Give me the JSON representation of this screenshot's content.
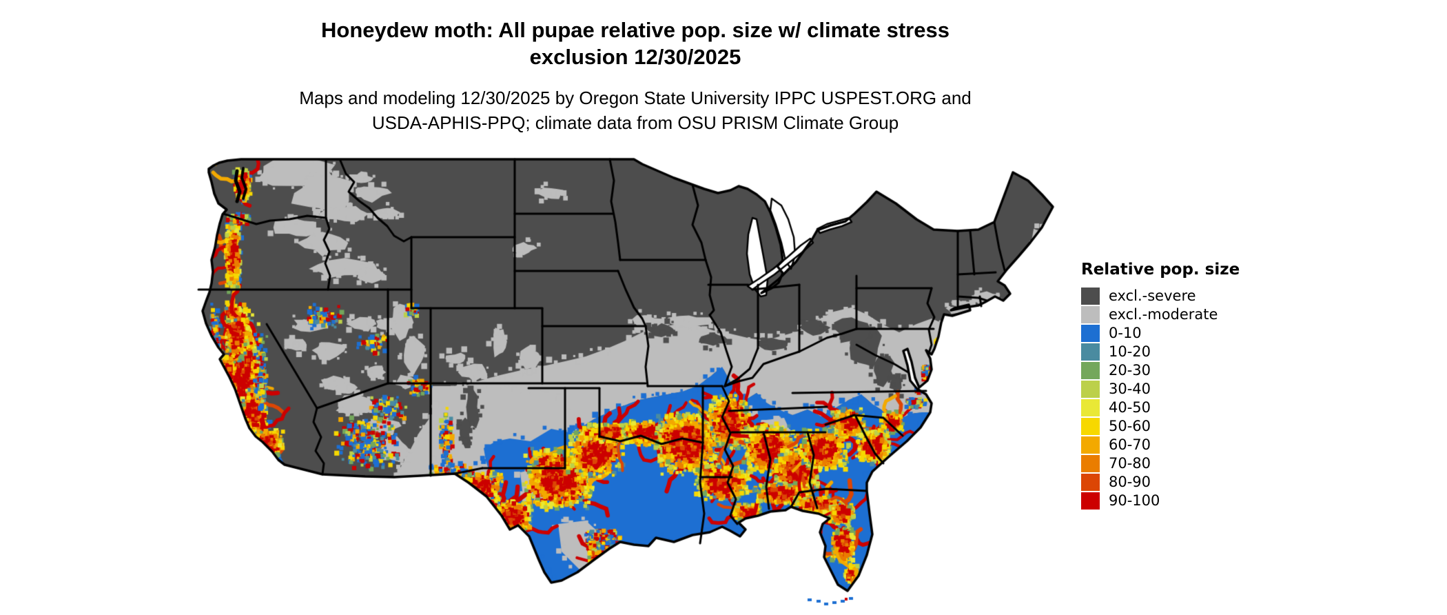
{
  "title": {
    "line1": "Honeydew moth: All pupae relative pop. size w/ climate stress",
    "line2": "exclusion 12/30/2025"
  },
  "subtitle": {
    "line1": "Maps and modeling 12/30/2025 by Oregon State University IPPC USPEST.ORG and",
    "line2": "USDA-APHIS-PPQ; climate data from OSU PRISM Climate Group"
  },
  "legend": {
    "title": "Relative pop. size",
    "items": [
      {
        "label": "excl.-severe",
        "color": "#4d4d4d"
      },
      {
        "label": "excl.-moderate",
        "color": "#bdbdbd"
      },
      {
        "label": "0-10",
        "color": "#1d6fd2"
      },
      {
        "label": "10-20",
        "color": "#4a8ba0"
      },
      {
        "label": "20-30",
        "color": "#74a75c"
      },
      {
        "label": "30-40",
        "color": "#bcd04a"
      },
      {
        "label": "40-50",
        "color": "#e9e836"
      },
      {
        "label": "50-60",
        "color": "#f7d800"
      },
      {
        "label": "60-70",
        "color": "#f3a900"
      },
      {
        "label": "70-80",
        "color": "#ea7d00"
      },
      {
        "label": "80-90",
        "color": "#dc4605"
      },
      {
        "label": "90-100",
        "color": "#cc0000"
      }
    ]
  },
  "map": {
    "region": "Continental United States",
    "colors": {
      "excluded_severe": "#4d4d4d",
      "excluded_moderate": "#bdbdbd",
      "low_population_blue": "#1d6fd2",
      "high_population_red": "#cc0000",
      "state_border": "#000000",
      "water": "#ffffff"
    }
  }
}
